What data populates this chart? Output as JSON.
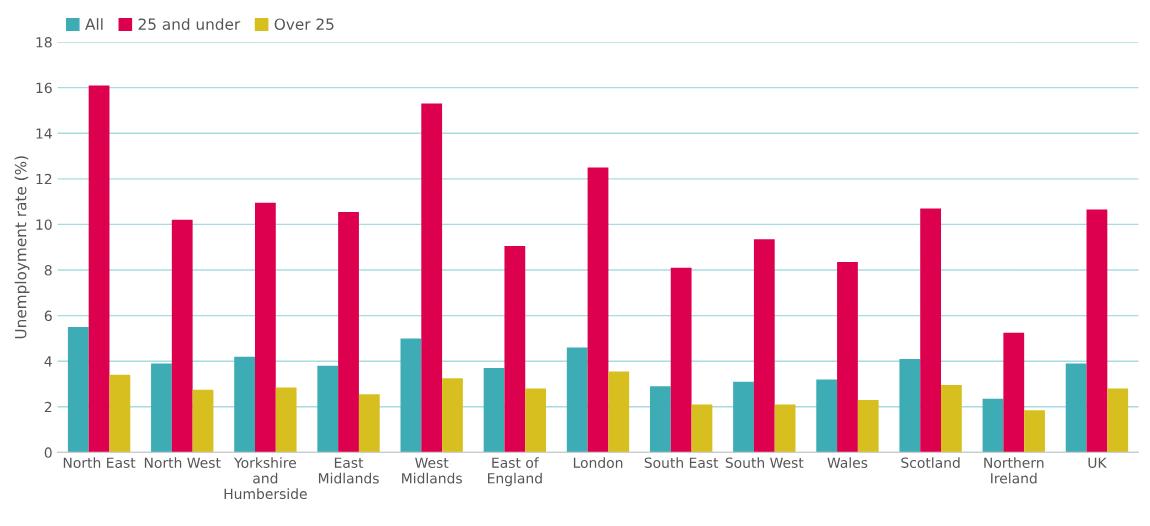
{
  "chart_data": {
    "type": "bar",
    "ylabel": "Unemployment rate (%)",
    "categories": [
      "North East",
      "North West",
      "Yorkshire and Humberside",
      "East Midlands",
      "West Midlands",
      "East of England",
      "London",
      "South East",
      "South West",
      "Wales",
      "Scotland",
      "Northern Ireland",
      "UK"
    ],
    "series": [
      {
        "name": "All",
        "color": "#3eacb5",
        "values": [
          5.5,
          3.9,
          4.2,
          3.8,
          5.0,
          3.7,
          4.6,
          2.9,
          3.1,
          3.2,
          4.1,
          2.35,
          3.9
        ]
      },
      {
        "name": "25 and under",
        "color": "#dc004e",
        "values": [
          16.1,
          10.2,
          10.95,
          10.55,
          15.3,
          9.05,
          12.5,
          8.1,
          9.35,
          8.35,
          10.7,
          5.25,
          10.65
        ]
      },
      {
        "name": "Over 25",
        "color": "#d8bf20",
        "values": [
          3.4,
          2.75,
          2.85,
          2.55,
          3.25,
          2.8,
          3.55,
          2.1,
          2.1,
          2.3,
          2.95,
          1.85,
          2.8
        ]
      }
    ],
    "ylim": [
      0,
      18
    ],
    "yticks": [
      0,
      2,
      4,
      6,
      8,
      10,
      12,
      14,
      16,
      18
    ],
    "grid": "y",
    "legend": "top left"
  }
}
